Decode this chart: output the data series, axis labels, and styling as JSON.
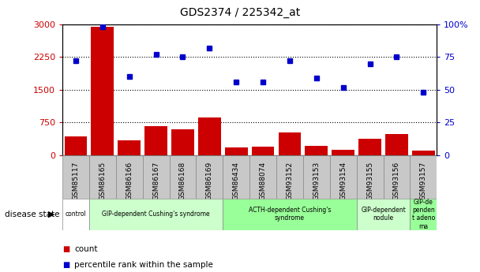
{
  "title": "GDS2374 / 225342_at",
  "samples": [
    "GSM85117",
    "GSM86165",
    "GSM86166",
    "GSM86167",
    "GSM86168",
    "GSM86169",
    "GSM86434",
    "GSM88074",
    "GSM93152",
    "GSM93153",
    "GSM93154",
    "GSM93155",
    "GSM93156",
    "GSM93157"
  ],
  "counts": [
    430,
    2950,
    330,
    670,
    590,
    870,
    180,
    185,
    510,
    210,
    120,
    370,
    490,
    100
  ],
  "percentiles": [
    72,
    98,
    60,
    77,
    75,
    82,
    56,
    56,
    72,
    59,
    52,
    70,
    75,
    48
  ],
  "bar_color": "#cc0000",
  "dot_color": "#0000cc",
  "ylim_left": [
    0,
    3000
  ],
  "ylim_right": [
    0,
    100
  ],
  "yticks_left": [
    0,
    750,
    1500,
    2250,
    3000
  ],
  "yticks_right": [
    0,
    25,
    50,
    75,
    100
  ],
  "ytick_labels_left": [
    "0",
    "750",
    "1500",
    "2250",
    "3000"
  ],
  "ytick_labels_right": [
    "0",
    "25",
    "50",
    "75",
    "100%"
  ],
  "groups": [
    {
      "label": "control",
      "start": 0,
      "end": 1,
      "color": "#ffffff",
      "text_wrap": false
    },
    {
      "label": "GIP-dependent Cushing's syndrome",
      "start": 1,
      "end": 6,
      "color": "#ccffcc",
      "text_wrap": false
    },
    {
      "label": "ACTH-dependent Cushing's\nsyndrome",
      "start": 6,
      "end": 11,
      "color": "#99ff99",
      "text_wrap": false
    },
    {
      "label": "GIP-dependent\nnodule",
      "start": 11,
      "end": 13,
      "color": "#ccffcc",
      "text_wrap": false
    },
    {
      "label": "GIP-de\npenden\nt adeno\nma",
      "start": 13,
      "end": 14,
      "color": "#99ff99",
      "text_wrap": false
    }
  ],
  "xlabel_disease": "disease state",
  "legend_count_label": "count",
  "legend_percentile_label": "percentile rank within the sample",
  "background_color": "#ffffff",
  "plot_bg_color": "#ffffff",
  "tick_bg_color": "#c8c8c8"
}
